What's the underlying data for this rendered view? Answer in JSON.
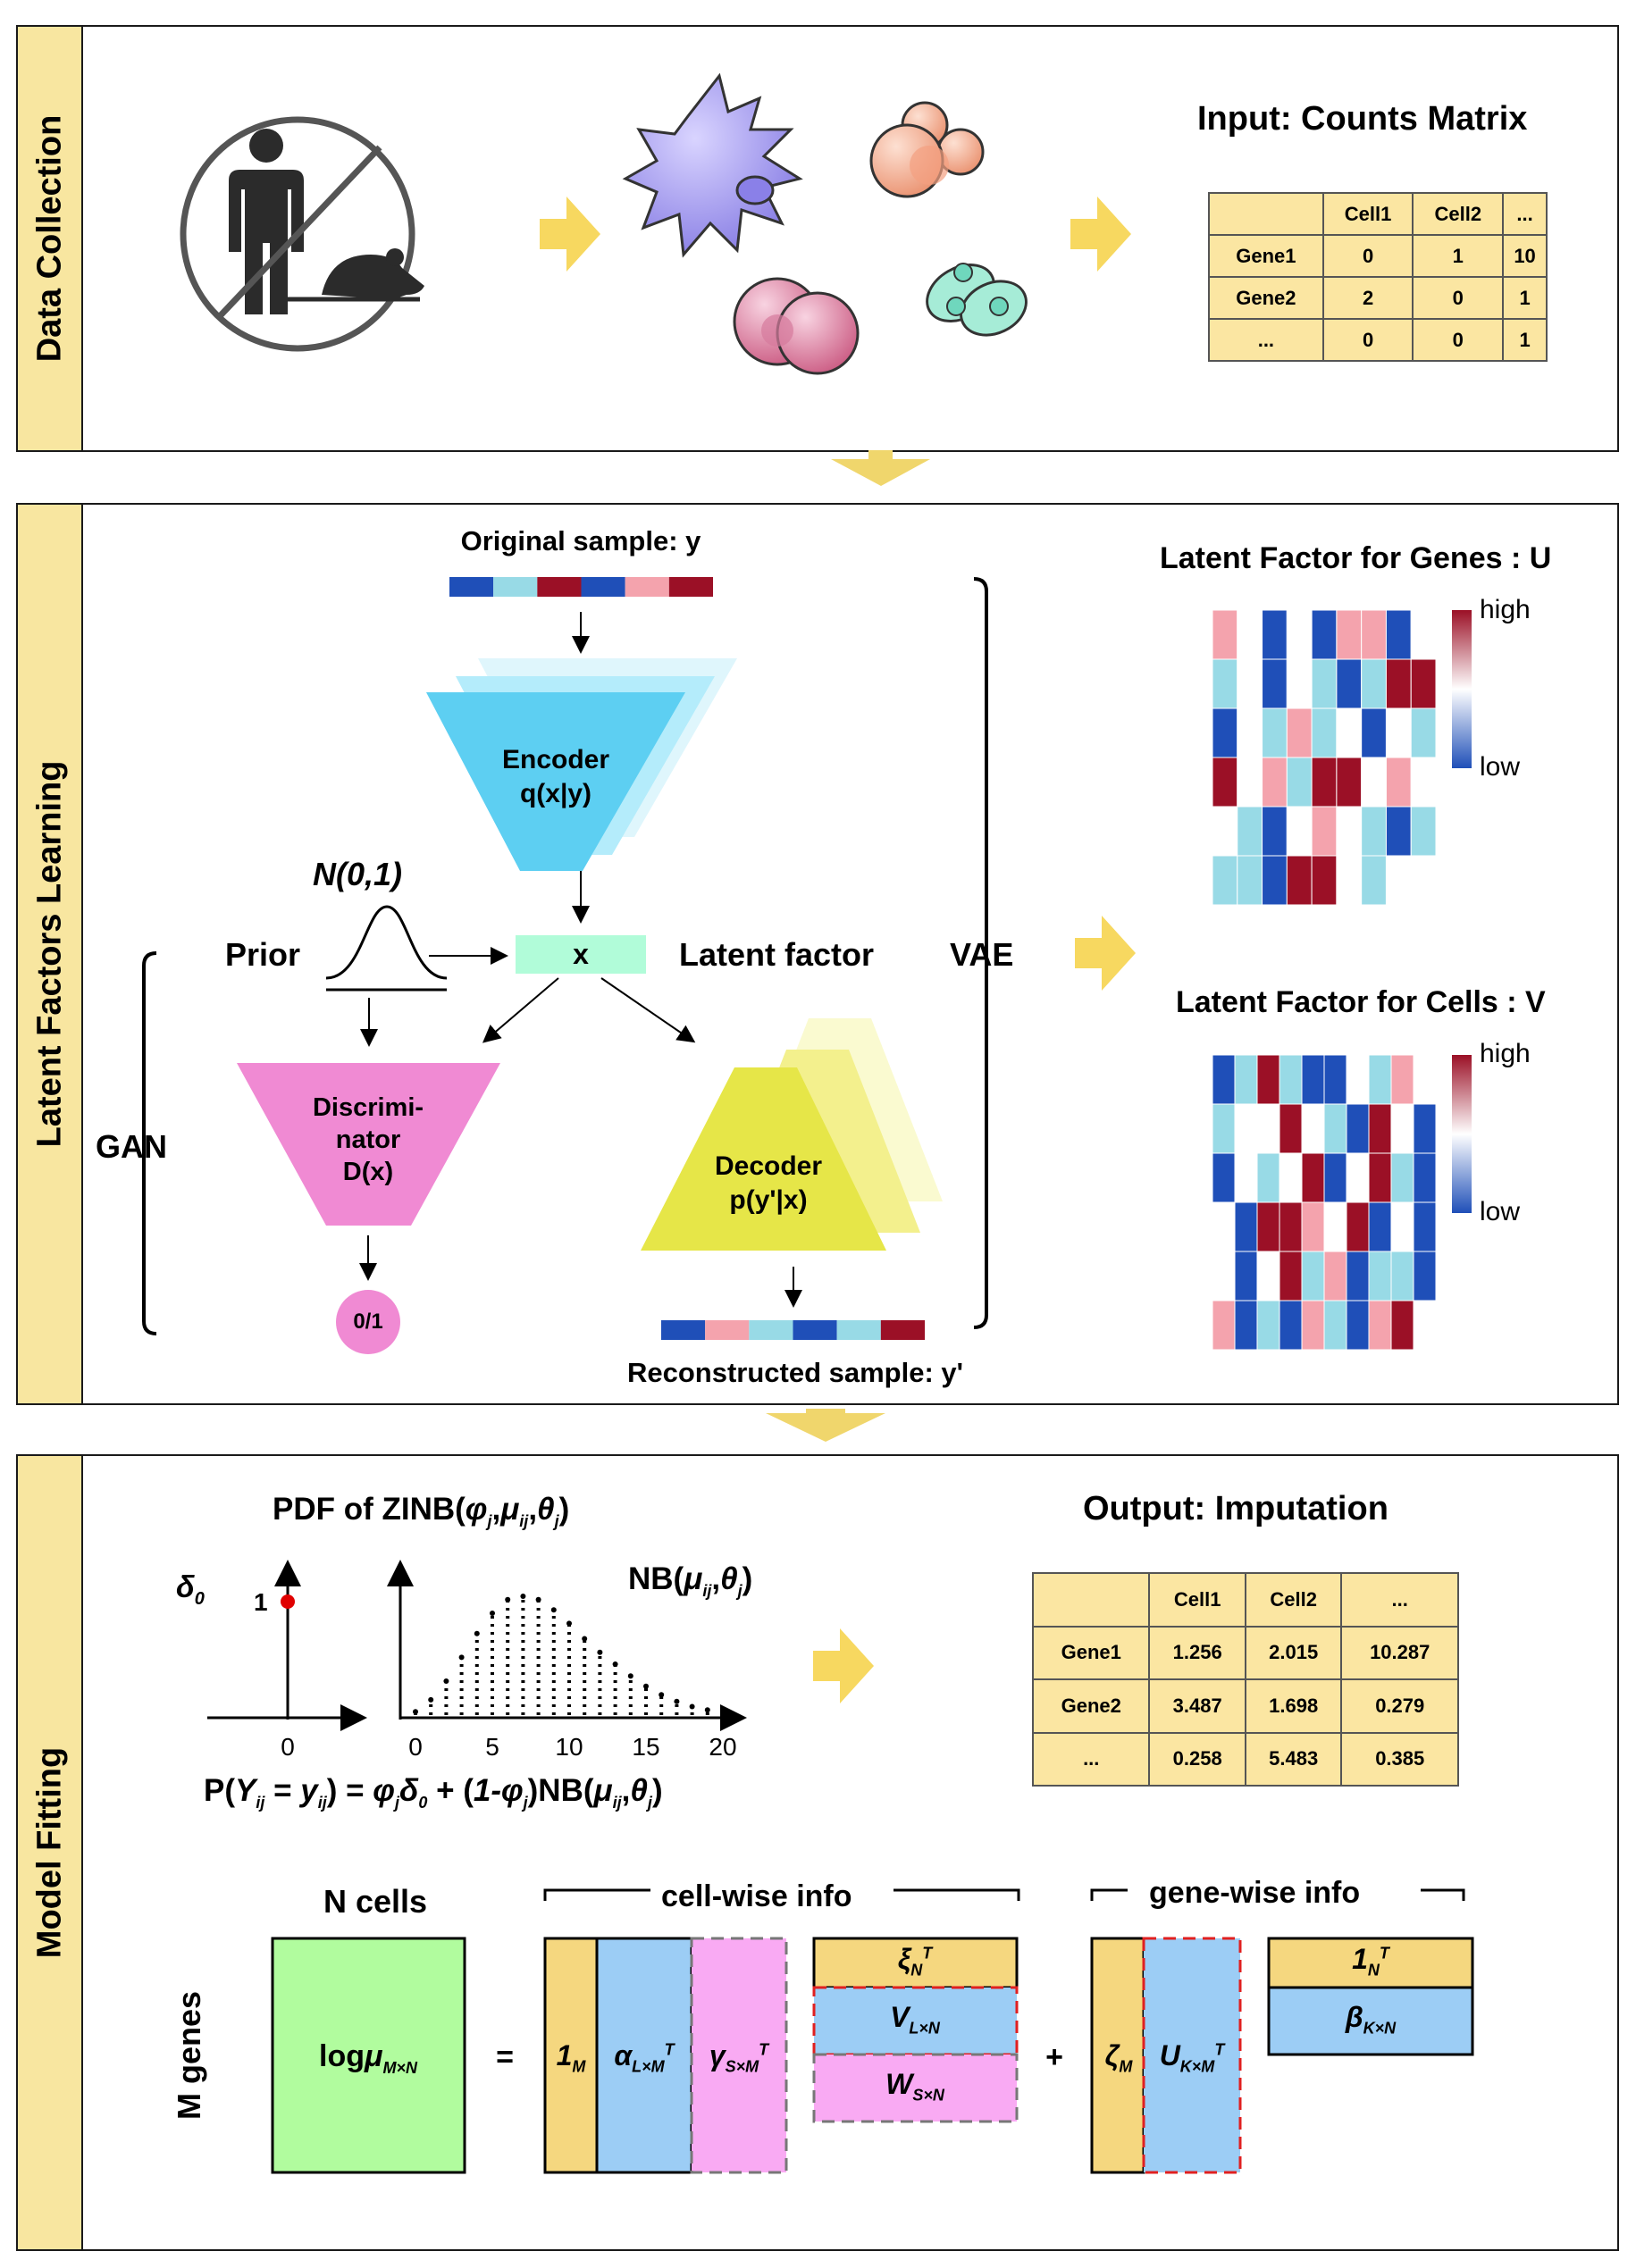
{
  "sections": {
    "data_collection": "Data Collection",
    "latent_learning": "Latent Factors Learning",
    "model_fitting": "Model Fitting"
  },
  "input": {
    "title": "Input: Counts Matrix",
    "header": [
      "",
      "Cell1",
      "Cell2",
      "..."
    ],
    "rows": [
      [
        "Gene1",
        "0",
        "1",
        "10"
      ],
      [
        "Gene2",
        "2",
        "0",
        "1"
      ],
      [
        "...",
        "0",
        "0",
        "1"
      ]
    ]
  },
  "vae": {
    "original": "Original sample: y",
    "encoder_line1": "Encoder",
    "encoder_line2": "q(x|y)",
    "prior_dist": "N(0,1)",
    "prior": "Prior",
    "x": "x",
    "latent_factor": "Latent factor",
    "vae_label": "VAE",
    "gan_label": "GAN",
    "disc_line1": "Discrimi-",
    "disc_line2": "nator",
    "disc_line3": "D(x)",
    "disc_out": "0/1",
    "decoder_line1": "Decoder",
    "decoder_line2": "p(y'|x)",
    "reconstructed": "Reconstructed sample: y'"
  },
  "heatmaps": {
    "genes_title": "Latent Factor for Genes : U",
    "cells_title": "Latent Factor for Cells : V",
    "high": "high",
    "low": "low",
    "palette": {
      "R": "#9b1026",
      "P": "#f4a3ad",
      "W": "#ffffff",
      "L": "#98dae6",
      "B": "#1f4fb8"
    },
    "genes": [
      "PWBWBPPBW",
      "LWBWLBLRR",
      "BWLPLWBWL",
      "RWPLRRWPW",
      "WLBWPWLBL",
      "LLBRRWLWW"
    ],
    "cells": [
      "BLRLBBWLPW",
      "LWWRWLBRWB",
      "BWLWRBWRLB",
      "WBRRPWRBWB",
      "WBWRLPBLLB",
      "PBLBPLBPRW"
    ],
    "original_bar": [
      "B",
      "L",
      "R",
      "B",
      "P",
      "R"
    ],
    "reconstructed_bar": [
      "B",
      "P",
      "L",
      "B",
      "L",
      "R"
    ]
  },
  "fitting": {
    "pdf_title_prefix": "PDF of ZINB(",
    "delta0": "δ0",
    "delta_one": "1",
    "delta_zero": "0",
    "nb_label": "NB(μij,θj)",
    "nb_ticks": [
      "0",
      "5",
      "10",
      "15",
      "20"
    ],
    "nb_values": [
      0.02,
      0.09,
      0.2,
      0.34,
      0.48,
      0.6,
      0.68,
      0.7,
      0.68,
      0.62,
      0.54,
      0.45,
      0.37,
      0.3,
      0.23,
      0.17,
      0.12,
      0.08,
      0.05,
      0.03,
      0.02
    ],
    "formula": "P(Yij = yij) = φjδ0 + (1-φj)NB(μij,θj)",
    "output_title": "Output: Imputation",
    "output_header": [
      "",
      "Cell1",
      "Cell2",
      "..."
    ],
    "output_rows": [
      [
        "Gene1",
        "1.256",
        "2.015",
        "10.287"
      ],
      [
        "Gene2",
        "3.487",
        "1.698",
        "0.279"
      ],
      [
        "...",
        "0.258",
        "5.483",
        "0.385"
      ]
    ],
    "n_cells": "N cells",
    "m_genes": "M genes",
    "cell_wise": "cell-wise info",
    "gene_wise": "gene-wise info",
    "log_mu": "logμM×N",
    "eq": "=",
    "plus": "+",
    "one_m": "1M",
    "alpha": "αL×MT",
    "gamma": "γS×MT",
    "xi": "ξNT",
    "v": "VL×N",
    "w": "WS×N",
    "zeta": "ζM",
    "u": "UK×MT",
    "one_n": "1NT",
    "beta": "βK×N",
    "colors": {
      "yellow": "#f5d77f",
      "blue": "#9ccdf5",
      "pink": "#f9aaf3",
      "green": "#b1fc9e",
      "red": "#e02020"
    }
  }
}
